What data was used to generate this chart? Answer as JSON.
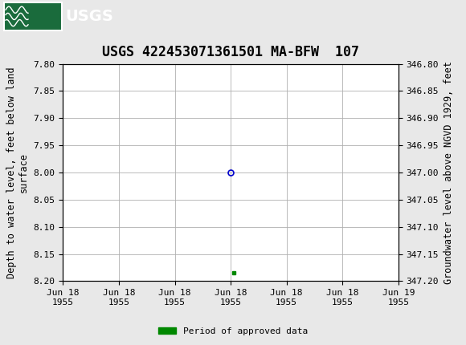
{
  "title": "USGS 422453071361501 MA-BFW  107",
  "header_bg_color": "#1a6b3c",
  "plot_bg_color": "#ffffff",
  "fig_bg_color": "#e8e8e8",
  "grid_color": "#b0b0b0",
  "ylabel_left": "Depth to water level, feet below land\nsurface",
  "ylabel_right": "Groundwater level above NGVD 1929, feet",
  "ylim_left": [
    7.8,
    8.2
  ],
  "ylim_right_top": 347.2,
  "ylim_right_bottom": 346.8,
  "yticks_left": [
    7.8,
    7.85,
    7.9,
    7.95,
    8.0,
    8.05,
    8.1,
    8.15,
    8.2
  ],
  "yticks_right": [
    347.2,
    347.15,
    347.1,
    347.05,
    347.0,
    346.95,
    346.9,
    346.85,
    346.8
  ],
  "ytick_labels_right": [
    "347.20",
    "347.15",
    "347.10",
    "347.05",
    "347.00",
    "346.95",
    "346.90",
    "346.85",
    "346.80"
  ],
  "xlim": [
    0,
    6
  ],
  "xtick_labels": [
    "Jun 18\n1955",
    "Jun 18\n1955",
    "Jun 18\n1955",
    "Jun 18\n1955",
    "Jun 18\n1955",
    "Jun 18\n1955",
    "Jun 19\n1955"
  ],
  "xtick_positions": [
    0,
    1,
    2,
    3,
    4,
    5,
    6
  ],
  "data_point_x": 3.0,
  "data_point_y": 8.0,
  "data_point_color": "#0000cc",
  "data_point_marker": "o",
  "data_point_markersize": 5,
  "approved_x": 3.05,
  "approved_y": 8.185,
  "approved_color": "#008800",
  "legend_label": "Period of approved data",
  "font_family": "DejaVu Sans Mono",
  "title_fontsize": 12,
  "axis_label_fontsize": 8.5,
  "tick_fontsize": 8
}
